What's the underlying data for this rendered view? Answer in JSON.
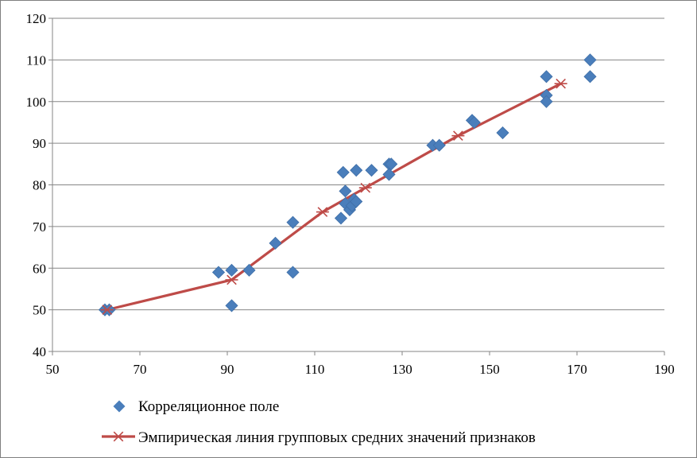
{
  "chart_data": {
    "type": "scatter",
    "xlim": [
      50,
      190
    ],
    "ylim": [
      40,
      120
    ],
    "x_ticks": [
      50,
      70,
      90,
      110,
      130,
      150,
      170,
      190
    ],
    "y_ticks": [
      40,
      50,
      60,
      70,
      80,
      90,
      100,
      110,
      120
    ],
    "grid": "horizontal",
    "legend_position": "bottom",
    "colors": {
      "points": "#4a7ebb",
      "line": "#be4b48",
      "grid": "#868686"
    },
    "series": [
      {
        "name": "Корреляционное поле",
        "kind": "scatter",
        "marker": "diamond",
        "points": [
          [
            62,
            50
          ],
          [
            63,
            50
          ],
          [
            88,
            59
          ],
          [
            91,
            59.5
          ],
          [
            91,
            51
          ],
          [
            95,
            59.5
          ],
          [
            101,
            66
          ],
          [
            105,
            71
          ],
          [
            105,
            59
          ],
          [
            116,
            72
          ],
          [
            116.5,
            83
          ],
          [
            117,
            78.5
          ],
          [
            117,
            75.5
          ],
          [
            118,
            74
          ],
          [
            118.5,
            75
          ],
          [
            119,
            76.5
          ],
          [
            119.5,
            76
          ],
          [
            119.5,
            83.5
          ],
          [
            123,
            83.5
          ],
          [
            127,
            85
          ],
          [
            127.5,
            85
          ],
          [
            127,
            82.5
          ],
          [
            137,
            89.5
          ],
          [
            138.5,
            89.5
          ],
          [
            146,
            95.5
          ],
          [
            146.5,
            95
          ],
          [
            153,
            92.5
          ],
          [
            163,
            106
          ],
          [
            163,
            101.5
          ],
          [
            163,
            100
          ],
          [
            173,
            110
          ],
          [
            173,
            106
          ]
        ]
      },
      {
        "name": "Эмпирическая линия групповых средних значений признаков",
        "kind": "line",
        "marker": "star",
        "points": [
          [
            62.5,
            50
          ],
          [
            91,
            57.2
          ],
          [
            111.8,
            73.5
          ],
          [
            121.6,
            79.3
          ],
          [
            142.8,
            91.8
          ],
          [
            166.3,
            104.3
          ]
        ]
      }
    ]
  }
}
